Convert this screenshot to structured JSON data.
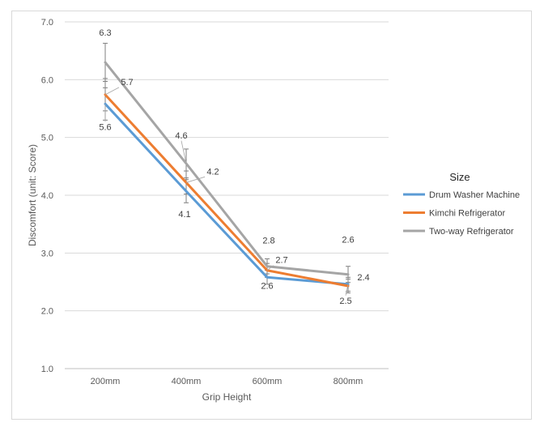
{
  "chart_data": {
    "type": "line",
    "title": "",
    "xlabel": "Grip Height",
    "ylabel": "Discomfort (unit: Score)",
    "categories": [
      "200mm",
      "400mm",
      "600mm",
      "800mm"
    ],
    "yticks": [
      "1.0",
      "2.0",
      "3.0",
      "4.0",
      "5.0",
      "6.0",
      "7.0"
    ],
    "ylim": [
      1.0,
      7.0
    ],
    "grid": "horizontal",
    "legend": {
      "title": "Size",
      "placement": "right"
    },
    "series": [
      {
        "name": "Drum Washer Machine",
        "color": "#5b9bd5",
        "values": [
          5.58,
          4.07,
          2.58,
          2.46
        ],
        "labels": [
          "5.6",
          "4.1",
          "2.6",
          "2.5"
        ],
        "error": [
          0.28,
          0.2,
          0.12,
          0.12
        ]
      },
      {
        "name": "Kimchi Refrigerator",
        "color": "#ed7d31",
        "values": [
          5.74,
          4.22,
          2.7,
          2.43
        ],
        "labels": [
          "5.7",
          "4.2",
          "2.7",
          "2.4"
        ],
        "error": [
          0.28,
          0.2,
          0.12,
          0.12
        ]
      },
      {
        "name": "Two-way Refrigerator",
        "color": "#a5a5a5",
        "values": [
          6.3,
          4.55,
          2.77,
          2.63
        ],
        "labels": [
          "6.3",
          "4.6",
          "2.8",
          "2.6"
        ],
        "error": [
          0.33,
          0.25,
          0.13,
          0.14
        ]
      }
    ]
  }
}
